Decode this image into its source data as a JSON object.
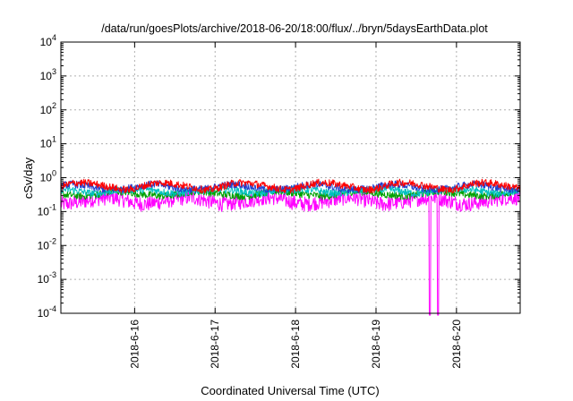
{
  "chart_data": {
    "type": "line",
    "title": "/data/run/goesPlots/archive/2018-06-20/18:00/flux/../bryn/5daysEarthData.plot",
    "xlabel": "Coordinated Universal Time (UTC)",
    "ylabel": "cSv/day",
    "xscale": "time",
    "yscale": "log",
    "xlim": [
      "2018-06-15T02:00",
      "2018-06-20T19:00"
    ],
    "ylim": [
      0.0001,
      10000
    ],
    "x_ticks": [
      "2018-6-16",
      "2018-6-17",
      "2018-6-18",
      "2018-6-19",
      "2018-6-20"
    ],
    "y_ticks": [
      {
        "base": "10",
        "exp": "-4"
      },
      {
        "base": "10",
        "exp": "-3"
      },
      {
        "base": "10",
        "exp": "-2"
      },
      {
        "base": "10",
        "exp": "-1"
      },
      {
        "base": "10",
        "exp": "0"
      },
      {
        "base": "10",
        "exp": "1"
      },
      {
        "base": "10",
        "exp": "2"
      },
      {
        "base": "10",
        "exp": "3"
      },
      {
        "base": "10",
        "exp": "4"
      }
    ],
    "grid": true,
    "series": [
      {
        "color": "#ff0000",
        "approx_level": 0.6
      },
      {
        "color": "#2040d0",
        "approx_level": 0.55
      },
      {
        "color": "#00c0c0",
        "approx_level": 0.42
      },
      {
        "color": "#00a000",
        "approx_level": 0.35
      },
      {
        "color": "#ff00ff",
        "approx_level": 0.22
      }
    ],
    "dips_to_floor": [
      "2018-06-19T16:00",
      "2018-06-19T18:30"
    ]
  }
}
